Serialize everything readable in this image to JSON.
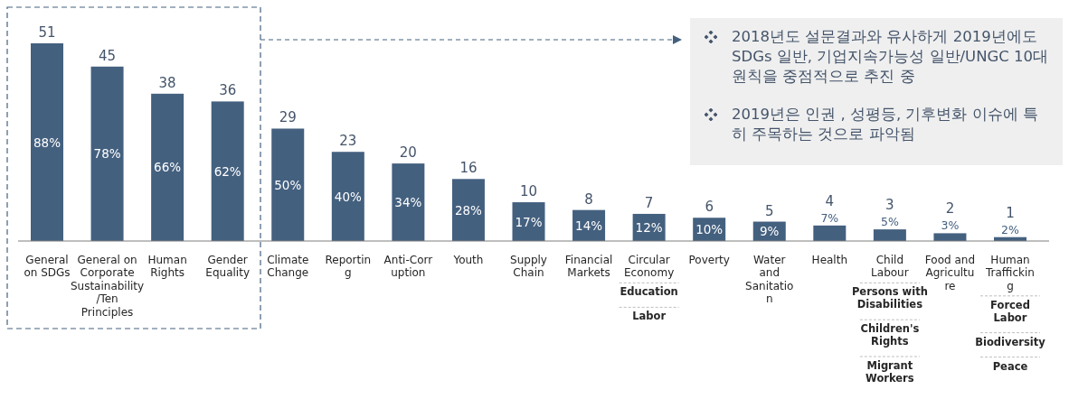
{
  "chart_data": {
    "type": "bar",
    "categories": [
      "General on SDGs",
      "General on Corporate Sustainability /Ten Principles",
      "Human Rights",
      "Gender Equality",
      "Climate Change",
      "Reporting",
      "Anti-Corruption",
      "Youth",
      "Supply Chain",
      "Financial Markets",
      "Circular Economy",
      "Poverty",
      "Water and Sanitation",
      "Health",
      "Child Labour",
      "Food and Agriculture",
      "Human Trafficking"
    ],
    "values": [
      51,
      45,
      38,
      36,
      29,
      23,
      20,
      16,
      10,
      8,
      7,
      6,
      5,
      4,
      3,
      2,
      1
    ],
    "color": "#44607f",
    "data_labels": true,
    "annotations": [
      "2018년도 설문결과와 유사하게 2019년에도 SDGs 일반, 기업지속가능성 일반/UNGC 10대 원칙을 중점적으로 추진 중",
      "2019년은 인권 , 성평등, 기후변화 이슈에 특히 주목하는 것으로 파악됨",
      "Education",
      "Labor",
      "Persons with Disabilities",
      "Children's Rights",
      "Migrant Workers",
      "Forced Labor",
      "Biodiversity",
      "Peace",
      "88%",
      "78%",
      "66%",
      "62%",
      "50%",
      "40%",
      "34%",
      "28%",
      "17%",
      "14%",
      "12%",
      "10%",
      "9%",
      "7%",
      "5%",
      "3%",
      "2%"
    ]
  }
}
